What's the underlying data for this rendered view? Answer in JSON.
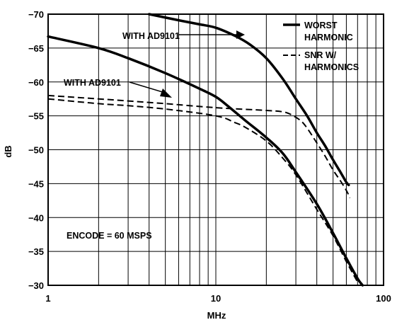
{
  "chart_data": {
    "type": "line",
    "xlabel": "MHz",
    "ylabel": "dB",
    "x_scale": "log",
    "xlim": [
      1,
      100
    ],
    "ylim": [
      -30,
      -70
    ],
    "x_ticks": [
      "1",
      "10",
      "100"
    ],
    "y_ticks": [
      "−70",
      "−65",
      "−60",
      "−55",
      "−50",
      "−45",
      "−40",
      "−35",
      "−30"
    ],
    "grid": true,
    "legend": {
      "placement": "top-right",
      "entries": [
        {
          "label_lines": [
            "WORST",
            "HARMONIC"
          ],
          "style": "solid"
        },
        {
          "label_lines": [
            "SNR W/",
            "HARMONICS"
          ],
          "style": "dashed"
        }
      ]
    },
    "annotations": [
      {
        "text": "WITH AD9101",
        "points_to": "worst-harmonic-with-ad9101"
      },
      {
        "text": "WITH AD9101",
        "points_to": "snr-with-ad9101"
      },
      {
        "text": "ENCODE = 60 MSPS"
      }
    ],
    "series": [
      {
        "id": "worst-harmonic-with-ad9101",
        "style": "solid",
        "x": [
          4,
          6,
          8,
          10,
          13,
          16,
          20,
          25,
          30,
          35,
          40,
          45,
          50,
          55,
          60,
          62
        ],
        "y": [
          -70,
          -69.1,
          -68.5,
          -68,
          -66.8,
          -65.5,
          -63.5,
          -60.5,
          -57.5,
          -55,
          -52.5,
          -50.5,
          -48.5,
          -46.8,
          -45.2,
          -44.8
        ]
      },
      {
        "id": "worst-harmonic",
        "style": "solid",
        "x": [
          1,
          2,
          3,
          5,
          8,
          10,
          12,
          15,
          20,
          25,
          30,
          40,
          50,
          60,
          70,
          75
        ],
        "y": [
          -66.7,
          -65,
          -63.5,
          -61.3,
          -59,
          -57.8,
          -56.3,
          -54.3,
          -51.8,
          -49.5,
          -46.7,
          -42,
          -37.7,
          -34,
          -31,
          -30
        ]
      },
      {
        "id": "snr-with-ad9101",
        "style": "dashed",
        "x": [
          1,
          2,
          3,
          5,
          10,
          20,
          25,
          28,
          32,
          35,
          40,
          45,
          50,
          55,
          60,
          63
        ],
        "y": [
          -58,
          -57.5,
          -57.2,
          -56.8,
          -56.2,
          -55.8,
          -55.6,
          -55.2,
          -54.3,
          -53.2,
          -51,
          -49,
          -47,
          -45.5,
          -44,
          -42.9
        ]
      },
      {
        "id": "snr-with-harmonics",
        "style": "dashed",
        "x": [
          1,
          2,
          3,
          5,
          10,
          13,
          15,
          20,
          25,
          30,
          40,
          50,
          60,
          70
        ],
        "y": [
          -57.5,
          -56.8,
          -56.5,
          -56,
          -55,
          -54,
          -53.3,
          -51.3,
          -48.8,
          -46.3,
          -41.2,
          -37.3,
          -33.5,
          -30.5
        ]
      }
    ]
  }
}
